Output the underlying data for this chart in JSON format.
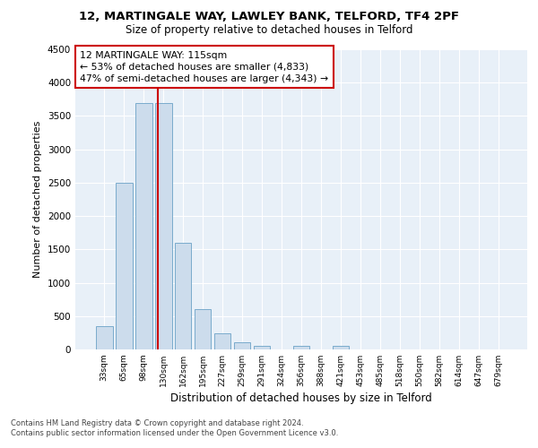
{
  "title1": "12, MARTINGALE WAY, LAWLEY BANK, TELFORD, TF4 2PF",
  "title2": "Size of property relative to detached houses in Telford",
  "xlabel": "Distribution of detached houses by size in Telford",
  "ylabel": "Number of detached properties",
  "categories": [
    "33sqm",
    "65sqm",
    "98sqm",
    "130sqm",
    "162sqm",
    "195sqm",
    "227sqm",
    "259sqm",
    "291sqm",
    "324sqm",
    "356sqm",
    "388sqm",
    "421sqm",
    "453sqm",
    "485sqm",
    "518sqm",
    "550sqm",
    "582sqm",
    "614sqm",
    "647sqm",
    "679sqm"
  ],
  "values": [
    350,
    2500,
    3700,
    3700,
    1600,
    600,
    240,
    110,
    60,
    0,
    60,
    0,
    60,
    0,
    0,
    0,
    0,
    0,
    0,
    0,
    0
  ],
  "bar_color": "#ccdcec",
  "bar_edge_color": "#7aabcc",
  "vline_color": "#cc0000",
  "vline_x": 2.72,
  "annotation_text": "12 MARTINGALE WAY: 115sqm\n← 53% of detached houses are smaller (4,833)\n47% of semi-detached houses are larger (4,343) →",
  "annotation_box_color": "#ffffff",
  "annotation_box_edge": "#cc0000",
  "footer": "Contains HM Land Registry data © Crown copyright and database right 2024.\nContains public sector information licensed under the Open Government Licence v3.0.",
  "ylim": [
    0,
    4500
  ],
  "yticks": [
    0,
    500,
    1000,
    1500,
    2000,
    2500,
    3000,
    3500,
    4000,
    4500
  ],
  "plot_bg_color": "#e8f0f8",
  "fig_bg_color": "#ffffff"
}
